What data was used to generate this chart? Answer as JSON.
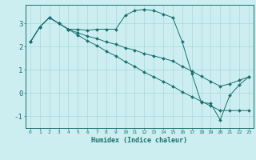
{
  "xlabel": "Humidex (Indice chaleur)",
  "bg_color": "#cceef0",
  "grid_color": "#aad8dc",
  "line_color": "#1a7070",
  "xlim": [
    -0.5,
    23.5
  ],
  "ylim": [
    -1.5,
    3.8
  ],
  "xticks": [
    0,
    1,
    2,
    3,
    4,
    5,
    6,
    7,
    8,
    9,
    10,
    11,
    12,
    13,
    14,
    15,
    16,
    17,
    18,
    19,
    20,
    21,
    22,
    23
  ],
  "yticks": [
    -1,
    0,
    1,
    2,
    3
  ],
  "lines": [
    {
      "x": [
        0,
        1,
        2,
        3,
        4,
        5,
        6,
        7,
        8,
        9,
        10,
        11,
        12,
        13,
        14,
        15,
        16,
        17,
        18,
        19,
        20,
        21,
        22,
        23
      ],
      "y": [
        2.2,
        2.85,
        3.25,
        3.0,
        2.75,
        2.75,
        2.7,
        2.75,
        2.75,
        2.75,
        3.35,
        3.55,
        3.6,
        3.55,
        3.4,
        3.25,
        2.2,
        0.85,
        -0.4,
        -0.45,
        -1.15,
        -0.1,
        0.35,
        0.7
      ]
    },
    {
      "x": [
        0,
        1,
        2,
        3,
        4,
        5,
        6,
        7,
        8,
        9,
        10,
        11,
        12,
        13,
        14,
        15,
        16,
        17,
        18,
        19,
        20,
        21,
        22,
        23
      ],
      "y": [
        2.2,
        2.85,
        3.25,
        3.0,
        2.75,
        2.5,
        2.25,
        2.05,
        1.8,
        1.6,
        1.35,
        1.15,
        0.9,
        0.7,
        0.5,
        0.3,
        0.05,
        -0.15,
        -0.35,
        -0.55,
        -0.75,
        -0.75,
        -0.75,
        -0.75
      ]
    },
    {
      "x": [
        0,
        1,
        2,
        3,
        4,
        5,
        6,
        7,
        8,
        9,
        10,
        11,
        12,
        13,
        14,
        15,
        16,
        17,
        18,
        19,
        20,
        21,
        22,
        23
      ],
      "y": [
        2.2,
        2.85,
        3.25,
        3.0,
        2.75,
        2.6,
        2.45,
        2.35,
        2.2,
        2.1,
        1.95,
        1.85,
        1.7,
        1.6,
        1.5,
        1.38,
        1.15,
        0.95,
        0.72,
        0.5,
        0.3,
        0.4,
        0.55,
        0.7
      ]
    }
  ]
}
